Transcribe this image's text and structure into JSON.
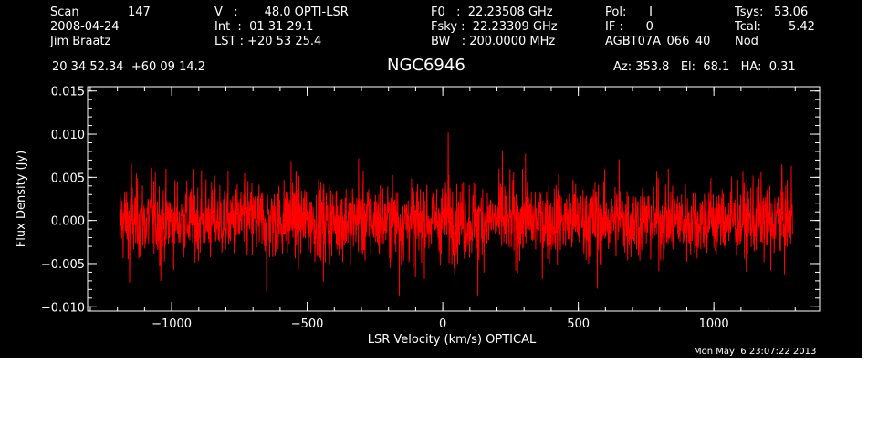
{
  "header": {
    "col1": {
      "l1_key": "Scan",
      "l1_val": "147",
      "l2": "2008-04-24",
      "l3": "Jim Braatz"
    },
    "col2": {
      "l1": "V   :       48.0 OPTI-LSR",
      "l2": "Int  :  01 31 29.1",
      "l3": "LST : +20 53 25.4"
    },
    "col3": {
      "l1": "F0   :  22.23508 GHz",
      "l2": "Fsky :  22.23309 GHz",
      "l3": "BW   : 200.0000 MHz"
    },
    "col4": {
      "l1": "Pol:      I",
      "l2": "IF :      0",
      "l3": "AGBT07A_066_40"
    },
    "col5": {
      "l1_key": "Tsys:",
      "l1_val": "53.06",
      "l2_key": "Tcal:",
      "l2_val": "5.42",
      "l3": "Nod"
    },
    "coords": "20 34 52.34  +60 09 14.2",
    "source": "NGC6946",
    "azelha": "Az: 353.8   El:  68.1   HA:  0.31"
  },
  "timestamp": "Mon May  6 23:07:22 2013",
  "colors": {
    "background": "#000000",
    "axes": "#ffffff",
    "trace": "#ff0000"
  },
  "chart_data": {
    "type": "line",
    "xlabel": "LSR Velocity (km/s) OPTICAL",
    "ylabel": "Flux Density (Jy)",
    "xlim": [
      -1310,
      1390
    ],
    "ylim": [
      -0.0105,
      0.0155
    ],
    "x_ticks": [
      -1000,
      -500,
      0,
      500,
      1000
    ],
    "x_tick_labels": [
      "−1000",
      "−500",
      "0",
      "500",
      "1000"
    ],
    "y_ticks": [
      -0.01,
      -0.005,
      0.0,
      0.005,
      0.01,
      0.015
    ],
    "y_tick_labels": [
      "−0.010",
      "−0.005",
      "0.000",
      "0.005",
      "0.010",
      "0.015"
    ],
    "series": [
      {
        "x_range": [
          -1190,
          1290
        ],
        "noise_rms": 0.0025,
        "baseline": 0.0,
        "peaks": [
          {
            "x": -1148,
            "y": 0.0066
          },
          {
            "x": -1075,
            "y": 0.0061
          },
          {
            "x": -890,
            "y": 0.0058
          },
          {
            "x": -560,
            "y": 0.0068
          },
          {
            "x": -310,
            "y": 0.0072
          },
          {
            "x": 20,
            "y": 0.0102
          },
          {
            "x": 220,
            "y": 0.008
          },
          {
            "x": 305,
            "y": 0.0077
          },
          {
            "x": 650,
            "y": 0.0071
          },
          {
            "x": 1250,
            "y": 0.0065
          },
          {
            "x": 1285,
            "y": 0.0063
          }
        ],
        "troughs": [
          {
            "x": -1155,
            "y": -0.0072
          },
          {
            "x": -1040,
            "y": -0.007
          },
          {
            "x": -650,
            "y": -0.0082
          },
          {
            "x": -440,
            "y": -0.0071
          },
          {
            "x": -160,
            "y": -0.0087
          },
          {
            "x": -100,
            "y": -0.0066
          },
          {
            "x": 130,
            "y": -0.0087
          },
          {
            "x": 570,
            "y": -0.0079
          },
          {
            "x": 1210,
            "y": -0.0058
          }
        ]
      }
    ]
  }
}
